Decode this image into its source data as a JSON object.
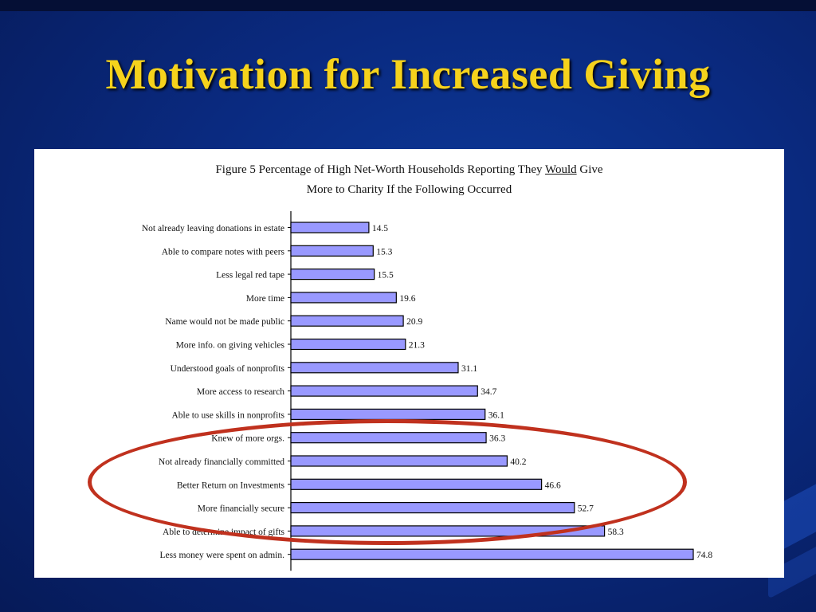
{
  "slide": {
    "title": "Motivation for Increased Giving"
  },
  "chart_data": {
    "type": "bar",
    "orientation": "horizontal",
    "title_line1_pre": "Figure 5 Percentage of High Net-Worth Households Reporting They ",
    "title_line1_underlined": "Would",
    "title_line1_post": " Give",
    "title_line2": "More to Charity If the Following Occurred",
    "categories": [
      "Not already leaving donations in estate",
      "Able to compare notes with peers",
      "Less legal red tape",
      "More time",
      "Name would not be made public",
      "More info. on giving vehicles",
      "Understood goals of nonprofits",
      "More access to research",
      "Able to use skills in nonprofits",
      "Knew of more orgs.",
      "Not already financially committed",
      "Better Return on Investments",
      "More financially secure",
      "Able to determine impact of gifts",
      "Less money were spent on admin."
    ],
    "values": [
      14.5,
      15.3,
      15.5,
      19.6,
      20.9,
      21.3,
      31.1,
      34.7,
      36.1,
      36.3,
      40.2,
      46.6,
      52.7,
      58.3,
      74.8
    ],
    "value_labels": [
      "14.5",
      "15.3",
      "15.5",
      "19.6",
      "20.9",
      "21.3",
      "31.1",
      "34.7",
      "36.1",
      "36.3",
      "40.2",
      "46.6",
      "52.7",
      "58.3",
      "74.8"
    ],
    "xlim": [
      0,
      80
    ],
    "bar_color": "#9999ff",
    "bar_edge": "#000000",
    "grid": false,
    "highlighted_categories": [
      "Knew of more orgs.",
      "Not already financially committed",
      "Better Return on Investments",
      "More financially secure",
      "Able to determine impact of gifts"
    ],
    "highlight_color": "#c0311e"
  }
}
